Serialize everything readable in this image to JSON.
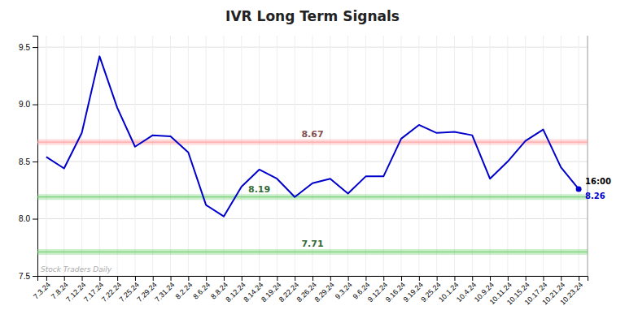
{
  "chart_data": {
    "type": "line",
    "title": "IVR Long Term Signals",
    "categories": [
      "7.3.24",
      "7.8.24",
      "7.12.24",
      "7.17.24",
      "7.22.24",
      "7.25.24",
      "7.29.24",
      "7.31.24",
      "8.2.24",
      "8.6.24",
      "8.8.24",
      "8.12.24",
      "8.14.24",
      "8.19.24",
      "8.22.24",
      "8.26.24",
      "8.29.24",
      "9.3.24",
      "9.6.24",
      "9.12.24",
      "9.16.24",
      "9.19.24",
      "9.25.24",
      "10.1.24",
      "10.4.24",
      "10.9.24",
      "10.11.24",
      "10.15.24",
      "10.17.24",
      "10.21.24",
      "10.23.24"
    ],
    "values": [
      8.54,
      8.44,
      8.75,
      9.42,
      8.97,
      8.63,
      8.73,
      8.72,
      8.58,
      8.12,
      8.02,
      8.28,
      8.43,
      8.35,
      8.19,
      8.31,
      8.35,
      8.22,
      8.37,
      8.37,
      8.7,
      8.82,
      8.75,
      8.76,
      8.73,
      8.35,
      8.5,
      8.68,
      8.78,
      8.45,
      8.26
    ],
    "color": "#0000cc",
    "ylim": [
      7.5,
      9.6
    ],
    "yticks": [
      7.5,
      {
        "value": 8.0,
        "label": "8.0"
      },
      8.5,
      {
        "value": 9.0,
        "label": "9.0"
      },
      9.5
    ],
    "grid": true,
    "reference_lines": [
      {
        "value": 8.67,
        "label": "8.67",
        "color": "#ff9999"
      },
      {
        "value": 8.19,
        "label": "8.19",
        "color": "#66cc66"
      },
      {
        "value": 7.71,
        "label": "7.71",
        "color": "#66cc66"
      }
    ],
    "annotations": [
      {
        "text": "Stock Traders Daily"
      },
      {
        "text": "16:00",
        "category": "10.23.24"
      },
      {
        "text": "8.26",
        "category": "10.23.24",
        "value": 8.26,
        "marker": "circle"
      }
    ]
  }
}
